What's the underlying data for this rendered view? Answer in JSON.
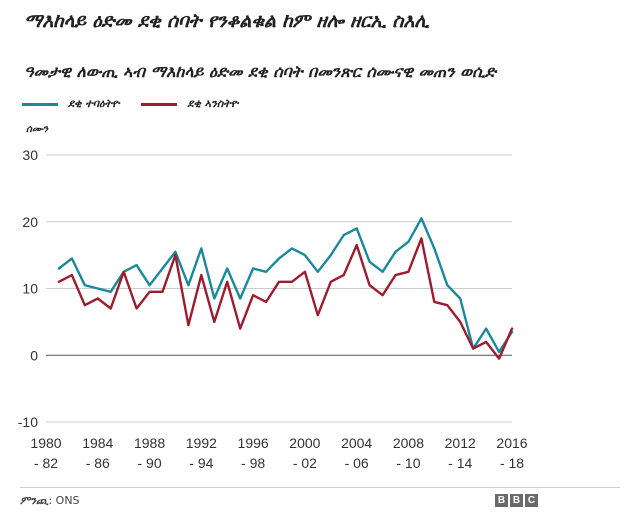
{
  "header": {
    "title": "ማእከላይ ዕድመ ደቂ ሰባት የንቆልቁል ከም ዘሎ ዘርኢ ስእሊ",
    "subtitle": "ዓመታዊ ለውጢ ኣብ ማእከላይ ዕድመ ደቂ ሰባት በመንጽር ሰሙናዊ መጠን ወሲድ"
  },
  "legend": {
    "items": [
      {
        "label": "ደቂ ተባዕትዮ",
        "color": "#1a8a9b"
      },
      {
        "label": "ደቂ ኣንስትዮ",
        "color": "#9e1c2e"
      }
    ]
  },
  "footer": {
    "source_label": "ምንጪ",
    "source_text": ": ONS",
    "brand": [
      "B",
      "B",
      "C"
    ]
  },
  "chart_data": {
    "type": "line",
    "title": "ዓመታዊ ለውጢ ኣብ ማእከላይ ዕድመ ደቂ ሰባት በመንጽር ሰሙናዊ መጠን ወሲድ",
    "xlabel": "",
    "ylabel": "ሰሙን",
    "ylim": [
      -10,
      30
    ],
    "yticks": [
      30,
      20,
      10,
      0,
      -10
    ],
    "xlim": [
      1980,
      2016
    ],
    "x_tick_labels": [
      {
        "x": 1980,
        "line1": "1980",
        "line2": "- 82"
      },
      {
        "x": 1984,
        "line1": "1984",
        "line2": "- 86"
      },
      {
        "x": 1988,
        "line1": "1988",
        "line2": "- 90"
      },
      {
        "x": 1992,
        "line1": "1992",
        "line2": "- 94"
      },
      {
        "x": 1996,
        "line1": "1996",
        "line2": "- 98"
      },
      {
        "x": 2000,
        "line1": "2000",
        "line2": "- 02"
      },
      {
        "x": 2004,
        "line1": "2004",
        "line2": "- 06"
      },
      {
        "x": 2008,
        "line1": "2008",
        "line2": "- 10"
      },
      {
        "x": 2012,
        "line1": "2012",
        "line2": "- 14"
      },
      {
        "x": 2016,
        "line1": "2016",
        "line2": "- 18"
      }
    ],
    "x": [
      1981,
      1982,
      1983,
      1984,
      1985,
      1986,
      1987,
      1988,
      1989,
      1990,
      1991,
      1992,
      1993,
      1994,
      1995,
      1996,
      1997,
      1998,
      1999,
      2000,
      2001,
      2002,
      2003,
      2004,
      2005,
      2006,
      2007,
      2008,
      2009,
      2010,
      2011,
      2012,
      2013,
      2014,
      2015,
      2016
    ],
    "series": [
      {
        "name": "ደቂ ተባዕትዮ",
        "color": "#1a8a9b",
        "values": [
          13,
          14.5,
          10.5,
          10,
          9.5,
          12.5,
          13.5,
          10.5,
          13,
          15.5,
          10.5,
          16,
          8.5,
          13,
          8.5,
          13,
          12.5,
          14.5,
          16,
          15,
          12.5,
          15,
          18,
          19,
          14,
          12.5,
          15.5,
          17,
          20.5,
          16,
          10.5,
          8.5,
          1,
          4,
          0.5,
          3.5
        ]
      },
      {
        "name": "ደቂ ኣንስትዮ",
        "color": "#9e1c2e",
        "values": [
          11,
          12,
          7.5,
          8.5,
          7,
          12.5,
          7,
          9.5,
          9.5,
          15,
          4.5,
          12,
          5,
          11,
          4,
          9,
          8,
          11,
          11,
          12.5,
          6,
          11,
          12,
          16.5,
          10.5,
          9,
          12,
          12.5,
          17.5,
          8,
          7.5,
          5,
          1,
          2,
          -0.5,
          4
        ]
      }
    ]
  }
}
